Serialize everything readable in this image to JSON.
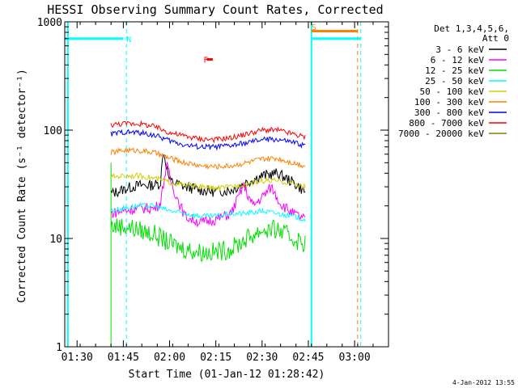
{
  "chart_data": {
    "type": "line",
    "title": "HESSI Observing Summary Count Rates, Corrected",
    "xlabel": "Start Time (01-Jan-12 01:28:42)",
    "ylabel": "Corrected Count Rate (s⁻¹ detector⁻¹)",
    "xlim": [
      "01:26",
      "03:11"
    ],
    "ylim": [
      1,
      1000
    ],
    "yscale": "log",
    "x_ticks": [
      "01:30",
      "01:45",
      "02:00",
      "02:15",
      "02:30",
      "02:45",
      "03:00"
    ],
    "y_ticks": [
      {
        "value": 1,
        "label": "1"
      },
      {
        "value": 10,
        "label": "10"
      },
      {
        "value": 100,
        "label": "100"
      },
      {
        "value": 1000,
        "label": "1000"
      }
    ],
    "legend": {
      "placement": "right",
      "header": [
        "Det 1,3,4,5,6,",
        "Att 0"
      ]
    },
    "series": [
      {
        "name": "3 - 6 keV",
        "color": "#000000",
        "x": [
          "01:41",
          "01:43",
          "01:46",
          "01:50",
          "01:54",
          "01:57",
          "01:58",
          "02:00",
          "02:05",
          "02:10",
          "02:15",
          "02:20",
          "02:25",
          "02:30",
          "02:35",
          "02:40",
          "02:44"
        ],
        "values": [
          26,
          27,
          29,
          31,
          31,
          32,
          65,
          34,
          30,
          28,
          27,
          28,
          33,
          38,
          40,
          33,
          27
        ]
      },
      {
        "name": "6 - 12 keV",
        "color": "#ff00ff",
        "x": [
          "01:41",
          "01:45",
          "01:50",
          "01:55",
          "01:57",
          "01:59",
          "02:01",
          "02:05",
          "02:10",
          "02:15",
          "02:20",
          "02:24",
          "02:27",
          "02:30",
          "02:33",
          "02:36",
          "02:40",
          "02:44"
        ],
        "values": [
          17,
          18,
          19,
          19,
          21,
          48,
          30,
          16,
          14,
          15,
          17,
          31,
          20,
          24,
          30,
          21,
          17,
          15
        ]
      },
      {
        "name": "12 - 25 keV",
        "color": "#00e000",
        "x": [
          "01:41",
          "01:45",
          "01:50",
          "01:55",
          "02:00",
          "02:05",
          "02:10",
          "02:15",
          "02:20",
          "02:25",
          "02:30",
          "02:35",
          "02:40",
          "02:44"
        ],
        "values": [
          13,
          13,
          12,
          11,
          9,
          8,
          7.5,
          7.5,
          8,
          10,
          12,
          12,
          10,
          9
        ]
      },
      {
        "name": "25 - 50 keV",
        "color": "#00ffff",
        "x": [
          "01:41",
          "01:45",
          "01:50",
          "01:55",
          "02:00",
          "02:05",
          "02:10",
          "02:15",
          "02:20",
          "02:25",
          "02:30",
          "02:35",
          "02:40",
          "02:44"
        ],
        "values": [
          18,
          19,
          20,
          20,
          18,
          17,
          16,
          16,
          17,
          17,
          18,
          17,
          16,
          15
        ]
      },
      {
        "name": "50 - 100 keV",
        "color": "#d0d000",
        "x": [
          "01:41",
          "01:45",
          "01:50",
          "01:55",
          "02:00",
          "02:05",
          "02:10",
          "02:15",
          "02:20",
          "02:25",
          "02:30",
          "02:35",
          "02:40",
          "02:44"
        ],
        "values": [
          37,
          38,
          38,
          36,
          33,
          31,
          30,
          29,
          30,
          32,
          34,
          34,
          32,
          30
        ]
      },
      {
        "name": "100 - 300 keV",
        "color": "#ff8000",
        "x": [
          "01:41",
          "01:45",
          "01:50",
          "01:55",
          "02:00",
          "02:05",
          "02:10",
          "02:15",
          "02:20",
          "02:25",
          "02:30",
          "02:35",
          "02:40",
          "02:44"
        ],
        "values": [
          62,
          65,
          65,
          62,
          55,
          50,
          47,
          46,
          47,
          50,
          54,
          55,
          50,
          47
        ]
      },
      {
        "name": "300 - 800 keV",
        "color": "#0000ff",
        "x": [
          "01:41",
          "01:45",
          "01:50",
          "01:55",
          "02:00",
          "02:05",
          "02:10",
          "02:15",
          "02:20",
          "02:25",
          "02:30",
          "02:35",
          "02:40",
          "02:44"
        ],
        "values": [
          92,
          96,
          95,
          90,
          80,
          73,
          70,
          70,
          72,
          76,
          82,
          82,
          77,
          72
        ]
      },
      {
        "name": "800 - 7000 keV",
        "color": "#ff0000",
        "x": [
          "01:41",
          "01:45",
          "01:50",
          "01:55",
          "02:00",
          "02:05",
          "02:10",
          "02:15",
          "02:20",
          "02:25",
          "02:30",
          "02:35",
          "02:40",
          "02:44"
        ],
        "values": [
          112,
          115,
          115,
          108,
          95,
          88,
          83,
          82,
          85,
          92,
          100,
          100,
          92,
          86
        ]
      },
      {
        "name": "7000 - 20000 keV",
        "color": "#808000",
        "x": [],
        "values": []
      }
    ],
    "annotations": [
      {
        "text": "N",
        "color": "#00ffff",
        "x": "01:46",
        "y": 700
      },
      {
        "text": "F",
        "color": "#ff0000",
        "x": "02:11",
        "y": 450
      },
      {
        "text": "S",
        "color": "#ff8000",
        "x": "02:46",
        "y": 900
      }
    ],
    "markers": {
      "night_bar": {
        "color": "#00ffff",
        "x1": "01:26",
        "x2": "01:45",
        "y": 700
      },
      "saa_bar_orange": {
        "color": "#ff8000",
        "x1": "02:46",
        "x2": "03:01",
        "y": 820
      },
      "saa_bar_cyan": {
        "color": "#00ffff",
        "x1": "02:46",
        "x2": "03:02",
        "y": 700
      },
      "flare_mark": {
        "color": "#ff0000",
        "x1": "02:12",
        "x2": "02:14",
        "y": 450
      },
      "cyan_dashed": [
        "01:46",
        "03:02"
      ],
      "cyan_solid": [
        "01:27",
        "02:46"
      ],
      "orange_dashed": [
        "03:01"
      ]
    }
  },
  "footer": {
    "timestamp": "4-Jan-2012 13:55"
  }
}
